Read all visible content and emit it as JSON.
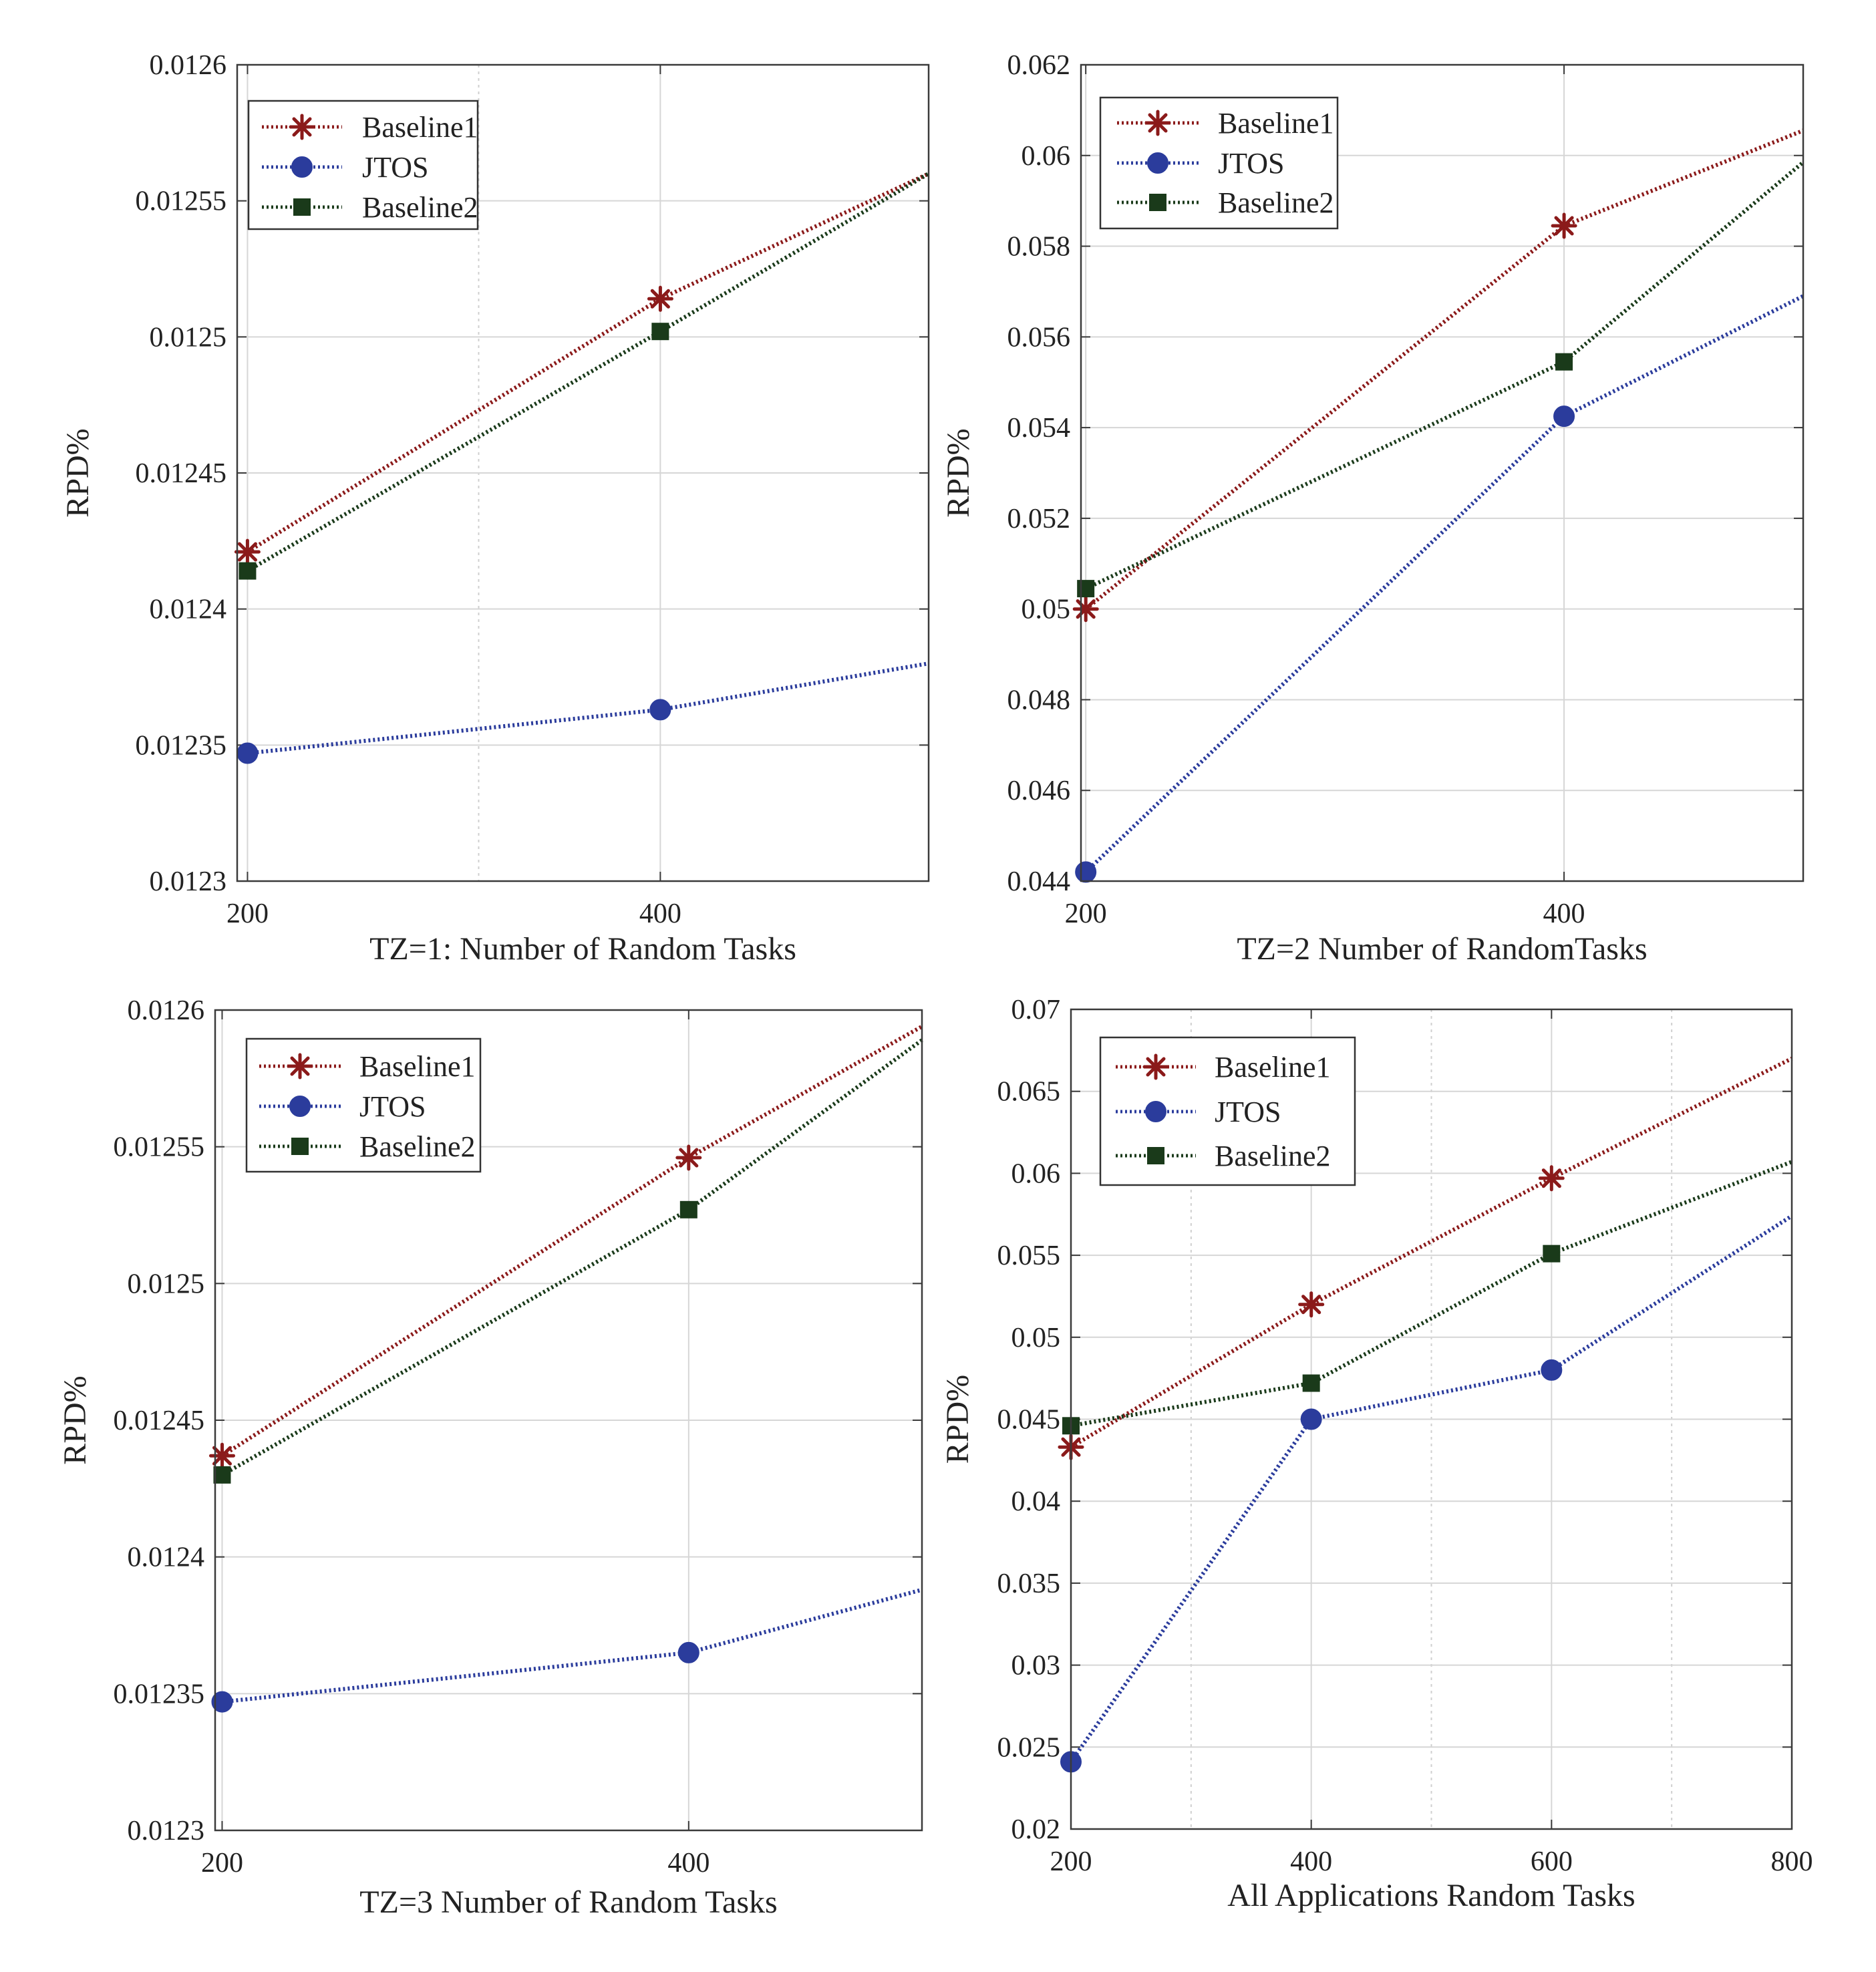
{
  "chart_data": [
    {
      "type": "line",
      "xlabel": "TZ=1: Number of Random Tasks",
      "ylabel": "RPD%",
      "xlim": [
        195,
        530
      ],
      "ylim": [
        0.0123,
        0.0126
      ],
      "xticks": [
        "200",
        "400"
      ],
      "xtick_values": [
        200,
        400
      ],
      "minor_x_grid": [
        312
      ],
      "yticks": [
        "0.0123",
        "0.01235",
        "0.0124",
        "0.01245",
        "0.0125",
        "0.01255",
        "0.0126"
      ],
      "grid": true,
      "legend_position": "top-left",
      "series": [
        {
          "name": "Baseline1",
          "color": "#8b1a1a",
          "marker": "asterisk",
          "x": [
            200,
            400,
            530
          ],
          "y": [
            0.012421,
            0.012514,
            0.01256
          ]
        },
        {
          "name": "JTOS",
          "color": "#2b3c9c",
          "marker": "circle",
          "x": [
            200,
            400,
            530
          ],
          "y": [
            0.012347,
            0.012363,
            0.01238
          ]
        },
        {
          "name": "Baseline2",
          "color": "#1a3a1a",
          "marker": "square",
          "x": [
            200,
            400,
            530
          ],
          "y": [
            0.012414,
            0.012502,
            0.01256
          ]
        }
      ]
    },
    {
      "type": "line",
      "xlabel": "TZ=2 Number of  RandomTasks",
      "ylabel": "RPD%",
      "xlim": [
        198,
        500
      ],
      "ylim": [
        0.044,
        0.062
      ],
      "xticks": [
        "200",
        "400"
      ],
      "xtick_values": [
        200,
        400
      ],
      "minor_x_grid": [],
      "yticks": [
        "0.044",
        "0.046",
        "0.048",
        "0.05",
        "0.052",
        "0.054",
        "0.056",
        "0.058",
        "0.06",
        "0.062"
      ],
      "grid": true,
      "legend_position": "top-left",
      "series": [
        {
          "name": "Baseline1",
          "color": "#8b1a1a",
          "marker": "asterisk",
          "x": [
            200,
            400,
            500
          ],
          "y": [
            0.05,
            0.05845,
            0.06055
          ]
        },
        {
          "name": "JTOS",
          "color": "#2b3c9c",
          "marker": "circle",
          "x": [
            200,
            400,
            500
          ],
          "y": [
            0.0442,
            0.05425,
            0.0569
          ]
        },
        {
          "name": "Baseline2",
          "color": "#1a3a1a",
          "marker": "square",
          "x": [
            200,
            400,
            500
          ],
          "y": [
            0.05045,
            0.05545,
            0.05985
          ]
        }
      ]
    },
    {
      "type": "line",
      "xlabel": "TZ=3 Number of Random Tasks",
      "ylabel": "RPD%",
      "xlim": [
        197,
        500
      ],
      "ylim": [
        0.0123,
        0.0126
      ],
      "xticks": [
        "200",
        "400"
      ],
      "xtick_values": [
        200,
        400
      ],
      "minor_x_grid": [],
      "yticks": [
        "0.0123",
        "0.01235",
        "0.0124",
        "0.01245",
        "0.0125",
        "0.01255",
        "0.0126"
      ],
      "grid": true,
      "legend_position": "top-left",
      "series": [
        {
          "name": "Baseline1",
          "color": "#8b1a1a",
          "marker": "asterisk",
          "x": [
            200,
            400,
            500
          ],
          "y": [
            0.012437,
            0.012546,
            0.012594
          ]
        },
        {
          "name": "JTOS",
          "color": "#2b3c9c",
          "marker": "circle",
          "x": [
            200,
            400,
            500
          ],
          "y": [
            0.012347,
            0.012365,
            0.012388
          ]
        },
        {
          "name": "Baseline2",
          "color": "#1a3a1a",
          "marker": "square",
          "x": [
            200,
            400,
            500
          ],
          "y": [
            0.01243,
            0.012527,
            0.012589
          ]
        }
      ]
    },
    {
      "type": "line",
      "xlabel": "All Applications Random Tasks",
      "ylabel": "RPD%",
      "xlim": [
        200,
        800
      ],
      "ylim": [
        0.02,
        0.07
      ],
      "xticks": [
        "200",
        "400",
        "600",
        "800"
      ],
      "xtick_values": [
        200,
        400,
        600,
        800
      ],
      "minor_x_grid": [
        300,
        500,
        700
      ],
      "yticks": [
        "0.02",
        "0.025",
        "0.03",
        "0.035",
        "0.04",
        "0.045",
        "0.05",
        "0.055",
        "0.06",
        "0.065",
        "0.07"
      ],
      "grid": true,
      "legend_position": "top-left",
      "series": [
        {
          "name": "Baseline1",
          "color": "#8b1a1a",
          "marker": "asterisk",
          "x": [
            200,
            400,
            600,
            800
          ],
          "y": [
            0.0433,
            0.052,
            0.0597,
            0.067
          ]
        },
        {
          "name": "JTOS",
          "color": "#2b3c9c",
          "marker": "circle",
          "x": [
            200,
            400,
            600,
            800
          ],
          "y": [
            0.0241,
            0.045,
            0.048,
            0.0574
          ]
        },
        {
          "name": "Baseline2",
          "color": "#1a3a1a",
          "marker": "square",
          "x": [
            200,
            400,
            600,
            800
          ],
          "y": [
            0.0446,
            0.0472,
            0.0551,
            0.0607
          ]
        }
      ]
    }
  ]
}
